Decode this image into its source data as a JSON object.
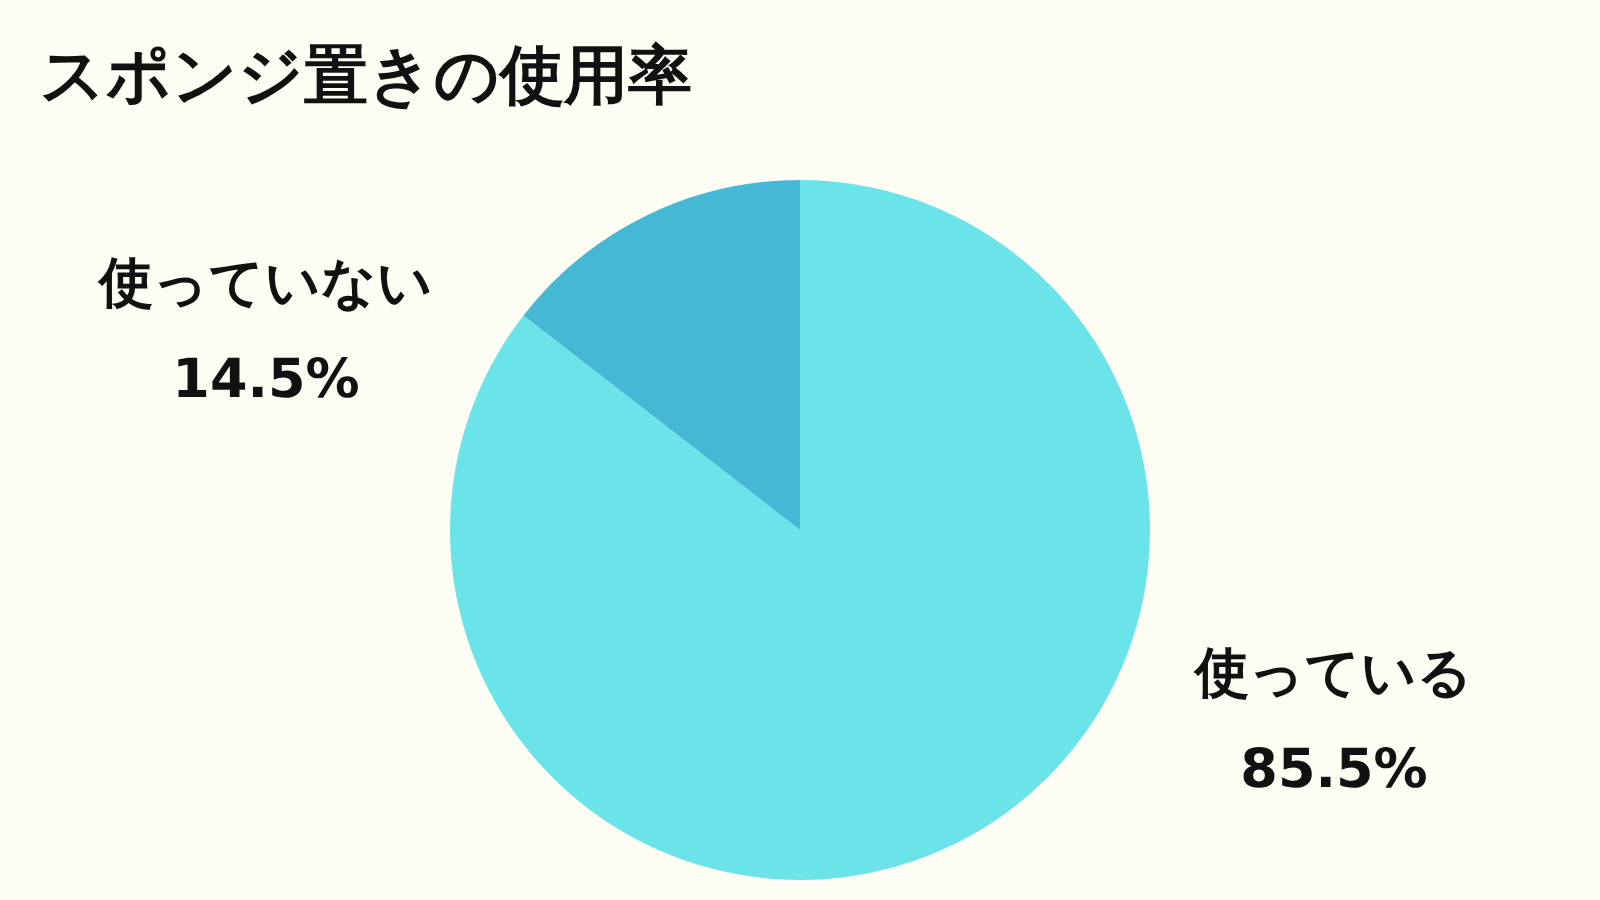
{
  "chart_data": {
    "type": "pie",
    "title": "スポンジ置きの使用率",
    "categories": [
      "使っている",
      "使っていない"
    ],
    "values": [
      85.5,
      14.5
    ],
    "colors": [
      "#6ae4e8",
      "#45b8d6"
    ],
    "value_labels": [
      "85.5%",
      "14.5%"
    ],
    "legend": false
  }
}
